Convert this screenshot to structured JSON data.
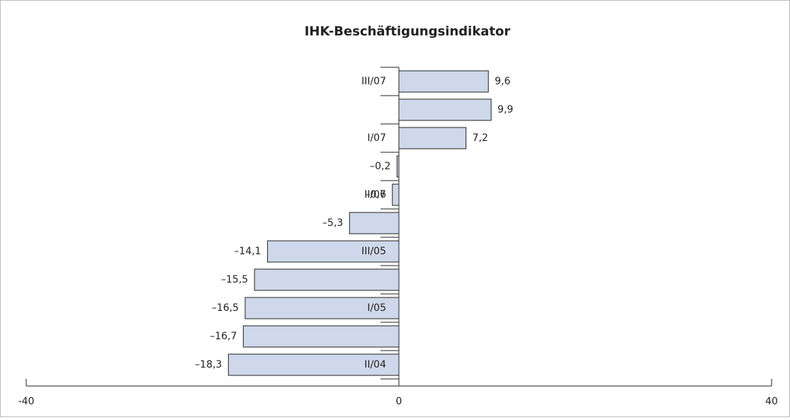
{
  "chart_data": {
    "type": "hbar",
    "title": "IHK-Beschäftigungsindikator",
    "categories": [
      "III/07",
      null,
      "I/07",
      null,
      "II/06",
      null,
      "III/05",
      null,
      "I/05",
      null,
      "II/04"
    ],
    "values": [
      9.6,
      9.9,
      7.2,
      -0.2,
      -0.7,
      -5.3,
      -14.1,
      -15.5,
      -16.5,
      -16.7,
      -18.3
    ],
    "value_labels": [
      "9,6",
      "9,9",
      "7,2",
      "–0,2",
      "–0,7",
      "–5,3",
      "–14,1",
      "–15,5",
      "–16,5",
      "–16,7",
      "–18,3"
    ],
    "color": "#cfd8ea",
    "xlim": [
      -40,
      40
    ],
    "xticks": [
      -40,
      0,
      40
    ]
  }
}
